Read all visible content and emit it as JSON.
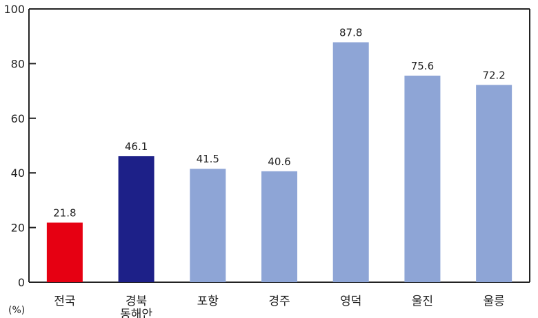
{
  "chart_data": {
    "type": "bar",
    "unit": "(%)",
    "categories": [
      [
        "전국"
      ],
      [
        "경북",
        "동해안"
      ],
      [
        "포항"
      ],
      [
        "경주"
      ],
      [
        "영덕"
      ],
      [
        "울진"
      ],
      [
        "울릉"
      ]
    ],
    "values": [
      21.8,
      46.1,
      41.5,
      40.6,
      87.8,
      75.6,
      72.2
    ],
    "value_labels": [
      "21.8",
      "46.1",
      "41.5",
      "40.6",
      "87.8",
      "75.6",
      "72.2"
    ],
    "bar_colors": [
      "#e60012",
      "#1d2088",
      "#8ea5d6",
      "#8ea5d6",
      "#8ea5d6",
      "#8ea5d6",
      "#8ea5d6"
    ],
    "ylim": [
      0,
      100
    ],
    "yticks": [
      0,
      20,
      40,
      60,
      80,
      100
    ],
    "grid": false,
    "title": "",
    "xlabel": "",
    "ylabel": ""
  }
}
